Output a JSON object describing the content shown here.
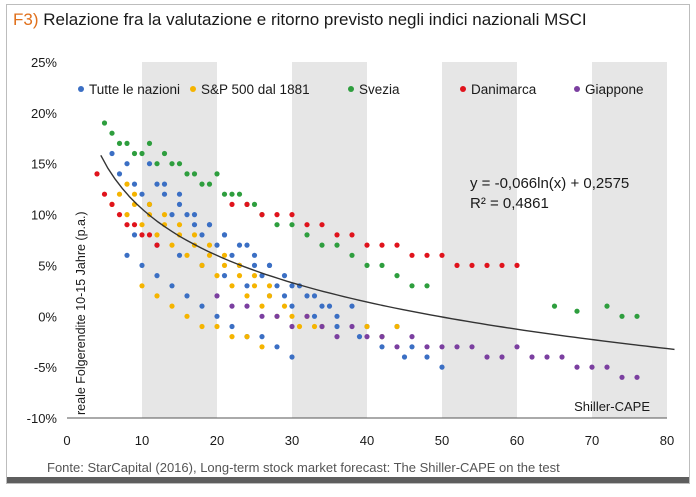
{
  "header": {
    "prefix": "F3)",
    "title": "Relazione fra la valutazione e ritorno previsto negli indici nazionali MSCI"
  },
  "source": "Fonte: StarCapital (2016), Long-term stock market forecast: The Shiller-CAPE on the test",
  "chart_data": {
    "type": "scatter",
    "title": "Relazione fra la valutazione e ritorno previsto negli indici nazionali MSCI",
    "xlabel": "Shiller-CAPE",
    "ylabel": "reale Folgerendite 10-15 Jahre (p.a.)",
    "xlim": [
      0,
      80
    ],
    "ylim": [
      -0.1,
      0.25
    ],
    "x_ticks": [
      "0",
      "10",
      "20",
      "30",
      "40",
      "50",
      "60",
      "70",
      "80"
    ],
    "y_ticks": [
      "25%",
      "20%",
      "15%",
      "10%",
      "5%",
      "0%",
      "-5%",
      "-10%"
    ],
    "y_tick_values": [
      0.25,
      0.2,
      0.15,
      0.1,
      0.05,
      0.0,
      -0.05,
      -0.1
    ],
    "shaded_x_bands": [
      [
        10,
        20
      ],
      [
        30,
        40
      ],
      [
        50,
        60
      ],
      [
        70,
        80
      ]
    ],
    "legend_position": "top",
    "grid": false,
    "series": [
      {
        "name": "Tutte le nazioni",
        "color": "#3b6fc4",
        "x": [
          6,
          7,
          8,
          9,
          10,
          11,
          12,
          13,
          14,
          15,
          16,
          17,
          18,
          19,
          20,
          21,
          22,
          23,
          24,
          25,
          26,
          27,
          28,
          29,
          30,
          32,
          34,
          36,
          38,
          40,
          42,
          44,
          46,
          48,
          50,
          8,
          10,
          12,
          14,
          16,
          18,
          20,
          22,
          24,
          26,
          28,
          30,
          11,
          13,
          15,
          17,
          19,
          21,
          23,
          25,
          27,
          29,
          31,
          33,
          35,
          9,
          12,
          15,
          18,
          21,
          24,
          27,
          30,
          33,
          36,
          39,
          42,
          45
        ],
        "y": [
          0.16,
          0.14,
          0.15,
          0.13,
          0.12,
          0.11,
          0.13,
          0.12,
          0.1,
          0.11,
          0.1,
          0.09,
          0.08,
          0.09,
          0.07,
          0.08,
          0.06,
          0.05,
          0.07,
          0.05,
          0.04,
          0.05,
          0.03,
          0.02,
          0.03,
          0.02,
          0.01,
          0.0,
          0.01,
          -0.01,
          -0.02,
          -0.01,
          -0.03,
          -0.04,
          -0.05,
          0.06,
          0.05,
          0.04,
          0.03,
          0.02,
          0.01,
          0.0,
          -0.01,
          -0.02,
          -0.02,
          -0.03,
          -0.04,
          0.15,
          0.13,
          0.12,
          0.1,
          0.09,
          0.08,
          0.07,
          0.06,
          0.05,
          0.04,
          0.03,
          0.02,
          0.01,
          0.08,
          0.07,
          0.06,
          0.05,
          0.04,
          0.03,
          0.02,
          0.01,
          0.0,
          -0.01,
          -0.02,
          -0.03,
          -0.04
        ]
      },
      {
        "name": "S&P 500 dal 1881",
        "color": "#f5b400",
        "x": [
          6,
          7,
          8,
          9,
          10,
          11,
          12,
          13,
          14,
          15,
          16,
          17,
          18,
          19,
          20,
          21,
          22,
          23,
          24,
          25,
          26,
          27,
          28,
          29,
          30,
          31,
          32,
          33,
          34,
          10,
          12,
          14,
          16,
          18,
          20,
          22,
          24,
          26,
          8,
          9,
          11,
          13,
          15,
          17,
          19,
          21,
          23,
          25,
          27,
          40,
          42,
          44
        ],
        "y": [
          0.11,
          0.12,
          0.1,
          0.11,
          0.09,
          0.1,
          0.08,
          0.09,
          0.07,
          0.08,
          0.06,
          0.07,
          0.05,
          0.06,
          0.04,
          0.05,
          0.03,
          0.04,
          0.02,
          0.03,
          0.01,
          0.02,
          0.0,
          0.01,
          0.0,
          -0.01,
          0.0,
          -0.01,
          -0.01,
          0.03,
          0.02,
          0.01,
          0.0,
          -0.01,
          -0.01,
          -0.02,
          -0.02,
          -0.03,
          0.13,
          0.12,
          0.11,
          0.1,
          0.09,
          0.08,
          0.07,
          0.06,
          0.05,
          0.04,
          0.03,
          -0.01,
          -0.02,
          -0.01
        ]
      },
      {
        "name": "Svezia",
        "color": "#2e9e3e",
        "x": [
          5,
          6,
          7,
          8,
          9,
          10,
          11,
          12,
          13,
          14,
          15,
          16,
          17,
          18,
          19,
          20,
          21,
          22,
          23,
          24,
          25,
          26,
          28,
          30,
          32,
          34,
          36,
          38,
          40,
          42,
          44,
          46,
          48,
          65,
          68,
          72,
          74,
          76
        ],
        "y": [
          0.19,
          0.18,
          0.17,
          0.17,
          0.16,
          0.16,
          0.17,
          0.15,
          0.16,
          0.15,
          0.15,
          0.14,
          0.14,
          0.13,
          0.13,
          0.14,
          0.12,
          0.12,
          0.12,
          0.11,
          0.11,
          0.1,
          0.09,
          0.09,
          0.08,
          0.07,
          0.07,
          0.06,
          0.05,
          0.05,
          0.04,
          0.03,
          0.03,
          0.01,
          0.005,
          0.01,
          0.0,
          0.0
        ]
      },
      {
        "name": "Danimarca",
        "color": "#e0131c",
        "x": [
          4,
          5,
          6,
          7,
          8,
          9,
          10,
          11,
          12,
          22,
          24,
          26,
          28,
          30,
          32,
          34,
          36,
          38,
          40,
          42,
          44,
          46,
          48,
          50,
          52,
          54,
          56,
          58,
          60
        ],
        "y": [
          0.14,
          0.12,
          0.11,
          0.1,
          0.09,
          0.09,
          0.08,
          0.08,
          0.07,
          0.11,
          0.11,
          0.1,
          0.1,
          0.1,
          0.09,
          0.09,
          0.08,
          0.08,
          0.07,
          0.07,
          0.07,
          0.06,
          0.06,
          0.06,
          0.05,
          0.05,
          0.05,
          0.05,
          0.05
        ]
      },
      {
        "name": "Giappone",
        "color": "#7b3fa0",
        "x": [
          20,
          22,
          24,
          26,
          28,
          30,
          32,
          34,
          36,
          38,
          40,
          42,
          44,
          46,
          48,
          50,
          52,
          54,
          56,
          58,
          60,
          62,
          64,
          66,
          68,
          70,
          72,
          74,
          76
        ],
        "y": [
          0.02,
          0.01,
          0.01,
          0.0,
          0.0,
          -0.01,
          0.0,
          -0.01,
          -0.02,
          -0.01,
          -0.02,
          -0.02,
          -0.03,
          -0.02,
          -0.03,
          -0.03,
          -0.03,
          -0.03,
          -0.04,
          -0.04,
          -0.03,
          -0.04,
          -0.04,
          -0.04,
          -0.05,
          -0.05,
          -0.05,
          -0.06,
          -0.06
        ]
      }
    ],
    "trendline": {
      "equation": "y = -0,066ln(x) + 0,2575",
      "r_squared": "R² = 0,4861",
      "a": -0.066,
      "b": 0.2575,
      "x_start": 4.5,
      "x_end": 81,
      "color": "#333333"
    }
  }
}
